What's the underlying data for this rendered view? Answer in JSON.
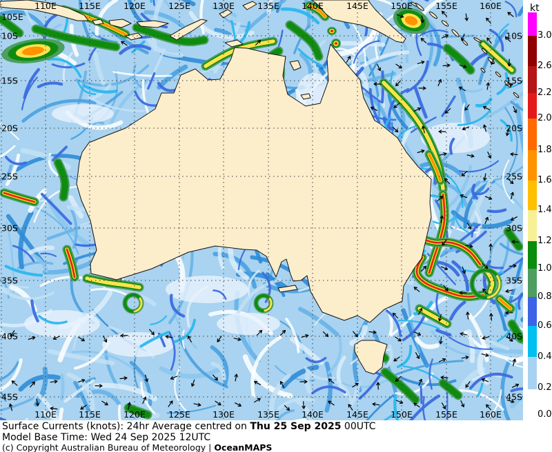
{
  "title_block": {
    "line1_prefix": "Surface Currents (knots): 24hr Average centred on ",
    "line1_bold": "Thu 25 Sep 2025",
    "line1_suffix": " 00UTC",
    "line2": "Model Base Time: Wed 24 Sep 2025 12UTC",
    "line3_prefix": "(c) Copyright Australian Bureau of Meteorology | ",
    "line3_bold": "OceanMAPS"
  },
  "colorbar": {
    "unit": "kt",
    "tick_labels": [
      "3.0",
      "2.6",
      "2.2",
      "2.0",
      "1.8",
      "1.6",
      "1.4",
      "1.2",
      "1.0",
      "0.8",
      "0.6",
      "0.4",
      "0.2",
      "0.0"
    ],
    "segment_colors": [
      "#ff00ff",
      "#8f0000",
      "#b51515",
      "#e41a1a",
      "#ff6a00",
      "#ff9300",
      "#ffc000",
      "#f7f096",
      "#0c8c0c",
      "#4d9e60",
      "#3c64e6",
      "#00c0f0",
      "#a8d2f2",
      "#ffffff"
    ]
  },
  "axes": {
    "corner_label": "105E",
    "top_labels": [
      "110E",
      "115E",
      "120E",
      "125E",
      "130E",
      "135E",
      "140E",
      "145E",
      "150E",
      "155E",
      "160E"
    ],
    "bottom_labels": [
      "110E",
      "115E",
      "120E",
      "125E",
      "130E",
      "135E",
      "140E",
      "145E",
      "150E",
      "155E",
      "160E"
    ],
    "left_labels": [
      "10S",
      "15S",
      "20S",
      "25S",
      "30S",
      "35S",
      "40S",
      "45S"
    ],
    "right_labels": [
      "10S",
      "15S",
      "20S",
      "25S",
      "30S",
      "35S",
      "40S",
      "45S"
    ]
  },
  "map": {
    "land_color": "#fcedcb",
    "ocean_base_color": "#a9d3f0",
    "arrow_color": "#000000",
    "gridline_color": "#3a3a3a",
    "speed_palette": {
      "green_edge": "#4d9e60",
      "green": "#0f8c0f",
      "yellow": "#ffe24d",
      "orange": "#ff9300",
      "red": "#e02020"
    },
    "features": [
      {
        "name": "nw-shelf-eddy",
        "type": "blob",
        "c": [
          48,
          74
        ],
        "rx": 46,
        "ry": 17,
        "rot": -8,
        "max": "orange"
      },
      {
        "name": "java-streak",
        "type": "stroke",
        "pts": [
          [
            92,
            14
          ],
          [
            126,
            24
          ],
          [
            158,
            38
          ],
          [
            182,
            50
          ]
        ],
        "max": "orange"
      },
      {
        "name": "java-green-band",
        "type": "stroke",
        "pts": [
          [
            52,
            42
          ],
          [
            92,
            54
          ],
          [
            134,
            62
          ],
          [
            168,
            68
          ]
        ],
        "max": "green"
      },
      {
        "name": "left-top-green",
        "type": "stroke",
        "pts": [
          [
            2,
            28
          ],
          [
            16,
            38
          ],
          [
            28,
            48
          ]
        ],
        "max": "green"
      },
      {
        "name": "flores-band",
        "type": "stroke",
        "pts": [
          [
            198,
            40
          ],
          [
            238,
            54
          ],
          [
            272,
            62
          ],
          [
            296,
            58
          ]
        ],
        "max": "green"
      },
      {
        "name": "timor-band-1",
        "type": "stroke",
        "pts": [
          [
            298,
            96
          ],
          [
            330,
            76
          ],
          [
            362,
            66
          ],
          [
            396,
            60
          ]
        ],
        "max": "yellow"
      },
      {
        "name": "timor-band-2",
        "type": "stroke",
        "pts": [
          [
            342,
            122
          ],
          [
            366,
            100
          ],
          [
            388,
            84
          ],
          [
            404,
            74
          ]
        ],
        "max": "green"
      },
      {
        "name": "timor-red-streak",
        "type": "stroke",
        "pts": [
          [
            404,
            86
          ],
          [
            408,
            104
          ],
          [
            404,
            120
          ]
        ],
        "max": "red"
      },
      {
        "name": "arafura-green",
        "type": "stroke",
        "pts": [
          [
            420,
            36
          ],
          [
            442,
            52
          ],
          [
            456,
            66
          ],
          [
            462,
            82
          ]
        ],
        "max": "green"
      },
      {
        "name": "torres-spot-1",
        "type": "blob",
        "c": [
          481,
          45
        ],
        "rx": 7,
        "ry": 6,
        "rot": 0,
        "max": "red"
      },
      {
        "name": "torres-spot-2",
        "type": "blob",
        "c": [
          487,
          63
        ],
        "rx": 7,
        "ry": 7,
        "rot": 0,
        "max": "red"
      },
      {
        "name": "png-arc",
        "type": "stroke",
        "pts": [
          [
            448,
            8
          ],
          [
            462,
            14
          ],
          [
            471,
            24
          ]
        ],
        "max": "orange"
      },
      {
        "name": "coral-sea-eddy",
        "type": "blob",
        "c": [
          596,
          30
        ],
        "rx": 27,
        "ry": 18,
        "rot": 20,
        "max": "orange"
      },
      {
        "name": "solomon-green",
        "type": "stroke",
        "pts": [
          [
            648,
            70
          ],
          [
            668,
            86
          ],
          [
            682,
            102
          ]
        ],
        "max": "green"
      },
      {
        "name": "coralsea-ne-green",
        "type": "stroke",
        "pts": [
          [
            700,
            64
          ],
          [
            722,
            84
          ],
          [
            742,
            102
          ]
        ],
        "max": "yellow"
      },
      {
        "name": "qld-coastal-filament",
        "type": "stroke",
        "pts": [
          [
            556,
            120
          ],
          [
            576,
            140
          ],
          [
            596,
            162
          ],
          [
            614,
            188
          ],
          [
            628,
            216
          ],
          [
            638,
            246
          ],
          [
            642,
            274
          ]
        ],
        "max": "yellow"
      },
      {
        "name": "qld-orange-core",
        "type": "stroke",
        "pts": [
          [
            622,
            224
          ],
          [
            632,
            244
          ],
          [
            638,
            262
          ]
        ],
        "max": "orange"
      },
      {
        "name": "eac-main-jet",
        "type": "stroke",
        "pts": [
          [
            642,
            282
          ],
          [
            646,
            312
          ],
          [
            640,
            342
          ],
          [
            630,
            370
          ],
          [
            622,
            396
          ]
        ],
        "max": "red"
      },
      {
        "name": "tasman-eddy-a",
        "type": "stroke",
        "pts": [
          [
            600,
            340
          ],
          [
            624,
            354
          ],
          [
            652,
            350
          ],
          [
            680,
            362
          ],
          [
            696,
            384
          ]
        ],
        "max": "red"
      },
      {
        "name": "tasman-eddy-b",
        "type": "stroke",
        "pts": [
          [
            612,
            374
          ],
          [
            600,
            392
          ],
          [
            612,
            410
          ],
          [
            642,
            422
          ],
          [
            674,
            432
          ],
          [
            700,
            428
          ]
        ],
        "max": "red"
      },
      {
        "name": "tasman-yellow-c",
        "type": "stroke",
        "pts": [
          [
            702,
            390
          ],
          [
            716,
            406
          ],
          [
            710,
            424
          ]
        ],
        "max": "yellow"
      },
      {
        "name": "tasman-orange-d",
        "type": "stroke",
        "pts": [
          [
            724,
            434
          ],
          [
            740,
            448
          ]
        ],
        "max": "orange"
      },
      {
        "name": "tasman-ring",
        "type": "ring",
        "c": [
          704,
          412
        ],
        "r": 20,
        "max": "yellow"
      },
      {
        "name": "right-green-1",
        "type": "stroke",
        "pts": [
          [
            736,
            336
          ],
          [
            752,
            358
          ]
        ],
        "max": "green"
      },
      {
        "name": "right-green-2",
        "type": "stroke",
        "pts": [
          [
            742,
            470
          ],
          [
            755,
            492
          ]
        ],
        "max": "green"
      },
      {
        "name": "leeuwin-jet",
        "type": "stroke",
        "pts": [
          [
            97,
            362
          ],
          [
            104,
            382
          ],
          [
            108,
            402
          ]
        ],
        "max": "red"
      },
      {
        "name": "south-coast-band",
        "type": "stroke",
        "pts": [
          [
            126,
            404
          ],
          [
            152,
            410
          ],
          [
            178,
            413
          ],
          [
            202,
            417
          ]
        ],
        "max": "yellow"
      },
      {
        "name": "sw-ring",
        "type": "ring",
        "c": [
          193,
          440
        ],
        "r": 12,
        "max": "yellow"
      },
      {
        "name": "gab-eddy",
        "type": "ring",
        "c": [
          382,
          440
        ],
        "r": 11,
        "max": "yellow"
      },
      {
        "name": "wa-offshore-jet",
        "type": "stroke",
        "pts": [
          [
            6,
            280
          ],
          [
            28,
            287
          ],
          [
            50,
            293
          ]
        ],
        "max": "red"
      },
      {
        "name": "wa-coastal-green",
        "type": "stroke",
        "pts": [
          [
            84,
            236
          ],
          [
            96,
            260
          ],
          [
            92,
            286
          ]
        ],
        "max": "green"
      },
      {
        "name": "tas-green-1",
        "type": "stroke",
        "pts": [
          [
            558,
            540
          ],
          [
            582,
            560
          ],
          [
            602,
            580
          ]
        ],
        "max": "green"
      },
      {
        "name": "tas-green-2",
        "type": "stroke",
        "pts": [
          [
            544,
            506
          ],
          [
            558,
            520
          ]
        ],
        "max": "green"
      },
      {
        "name": "se-yellow-streak",
        "type": "stroke",
        "pts": [
          [
            608,
            448
          ],
          [
            630,
            460
          ],
          [
            648,
            470
          ]
        ],
        "max": "yellow"
      },
      {
        "name": "bottom-green-1",
        "type": "stroke",
        "pts": [
          [
            186,
            592
          ],
          [
            214,
            602
          ]
        ],
        "max": "green"
      },
      {
        "name": "bottom-green-2",
        "type": "stroke",
        "pts": [
          [
            642,
            556
          ],
          [
            664,
            574
          ]
        ],
        "max": "green"
      }
    ]
  }
}
